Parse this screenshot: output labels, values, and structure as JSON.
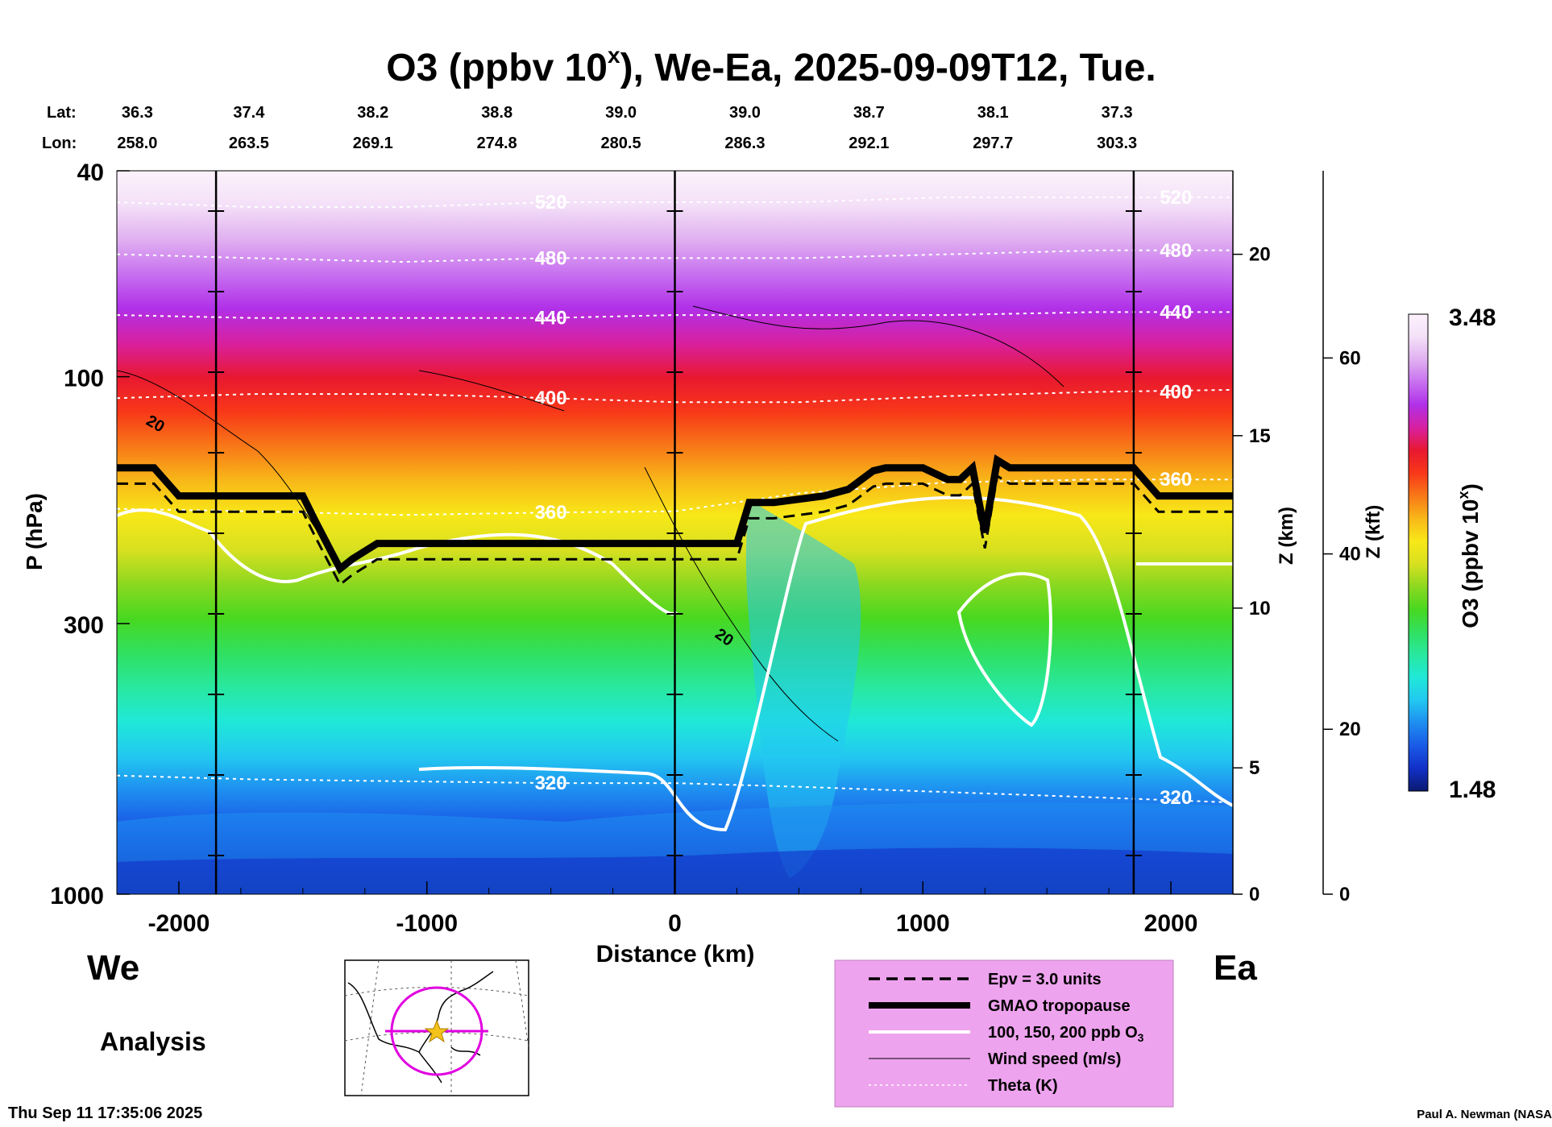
{
  "title": "O3 (ppbv 10",
  "title_sup": "x",
  "title_rest": "), We-Ea, 2025-09-09T12, Tue.",
  "lat_label": "Lat:",
  "lon_label": "Lon:",
  "lats": [
    "36.3",
    "37.4",
    "38.2",
    "38.8",
    "39.0",
    "39.0",
    "38.7",
    "38.1",
    "37.3"
  ],
  "lons": [
    "258.0",
    "263.5",
    "269.1",
    "274.8",
    "280.5",
    "286.3",
    "292.1",
    "297.7",
    "303.3"
  ],
  "left_label": "We",
  "right_label": "Ea",
  "analysis_label": "Analysis",
  "timestamp": "Thu Sep 11 17:35:06 2025",
  "credit": "Paul A. Newman (NASA",
  "colorbar": {
    "max_label": "3.48",
    "min_label": "1.48",
    "label_main": "O3 (ppbv 10",
    "label_sup": "x",
    "label_end": ")"
  },
  "legend": [
    {
      "style": "dashed",
      "label": "Epv = 3.0 units"
    },
    {
      "style": "thick",
      "label": "GMAO tropopause"
    },
    {
      "style": "white",
      "label": "100, 150, 200 ppb O"
    },
    {
      "style": "thin",
      "label": "Wind speed (m/s)"
    },
    {
      "style": "dotted",
      "label": "Theta (K)"
    }
  ],
  "legend_sub3": "3",
  "colors": {
    "legend_bg": "#eea3ee",
    "map_circle": "#e000e0",
    "map_star": "#f3c21b",
    "colormap": [
      "#0a1a6e",
      "#1230c8",
      "#1a5ae6",
      "#1e8ef0",
      "#22c8f0",
      "#20e8d8",
      "#28e8a0",
      "#30e060",
      "#48d820",
      "#8cd820",
      "#d8e020",
      "#f8e818",
      "#f8b818",
      "#f87818",
      "#f83818",
      "#e81830",
      "#d820a0",
      "#b030e8",
      "#c870f0",
      "#e0b0f0",
      "#f4e0f8",
      "#fcf2fc"
    ]
  },
  "chart_data": {
    "type": "heatmap",
    "x_axis": {
      "label": "Distance (km)",
      "range": [
        -2250,
        2250
      ],
      "ticks": [
        -2000,
        -1000,
        0,
        1000,
        2000
      ],
      "tick_labels": [
        "-2000",
        "-1000",
        "0",
        "1000",
        "2000"
      ]
    },
    "y_axis": {
      "label": "P (hPa)",
      "scale": "log",
      "range": [
        1000,
        40
      ],
      "ticks": [
        40,
        100,
        300,
        1000
      ],
      "tick_labels": [
        "40",
        "100",
        "300",
        "1000"
      ]
    },
    "z_axis": {
      "label": "Z (km)",
      "tick_labels": [
        "0",
        "5",
        "10",
        "15",
        "20"
      ],
      "ticks_hpa": [
        1000,
        570,
        280,
        130,
        58
      ]
    },
    "z_kft_axis": {
      "label": "Z (kft)",
      "tick_labels": [
        "0",
        "20",
        "40",
        "60"
      ],
      "ticks_hpa": [
        1000,
        480,
        220,
        92
      ]
    },
    "colorbar_range": [
      1.48,
      3.48
    ],
    "vertical_markers_km": [
      -1850,
      0,
      1850
    ],
    "tropopause_hpa": {
      "x": [
        -2250,
        -2100,
        -2000,
        -1800,
        -1500,
        -1450,
        -1350,
        -1300,
        -1200,
        -1000,
        -500,
        0,
        250,
        300,
        400,
        600,
        700,
        800,
        850,
        1000,
        1100,
        1150,
        1200,
        1250,
        1300,
        1350,
        1600,
        1850,
        1950,
        2250
      ],
      "y": [
        150,
        150,
        170,
        170,
        170,
        190,
        235,
        225,
        210,
        210,
        210,
        210,
        210,
        175,
        175,
        170,
        165,
        152,
        150,
        150,
        158,
        158,
        150,
        200,
        145,
        150,
        150,
        150,
        170,
        170
      ]
    },
    "theta_contours": [
      {
        "label": "320",
        "pressures_hpa": [
          590,
          600,
          605,
          610,
          610,
          620,
          635,
          650,
          665
        ]
      },
      {
        "label": "360",
        "pressures_hpa": [
          180,
          182,
          185,
          183,
          182,
          168,
          160,
          158,
          158
        ]
      },
      {
        "label": "400",
        "pressures_hpa": [
          110,
          108,
          108,
          110,
          112,
          112,
          109,
          107,
          106
        ]
      },
      {
        "label": "440",
        "pressures_hpa": [
          76,
          77,
          77,
          77,
          76,
          76,
          76,
          75,
          75
        ]
      },
      {
        "label": "480",
        "pressures_hpa": [
          58,
          59,
          60,
          59,
          59,
          59,
          58,
          57,
          57
        ]
      },
      {
        "label": "520",
        "pressures_hpa": [
          46,
          47,
          47,
          46,
          46,
          46,
          45,
          45,
          45
        ]
      }
    ],
    "theta_x_km": [
      -2250,
      -1700,
      -1100,
      -500,
      0,
      500,
      1100,
      1700,
      2250
    ],
    "wind_label": "20"
  }
}
